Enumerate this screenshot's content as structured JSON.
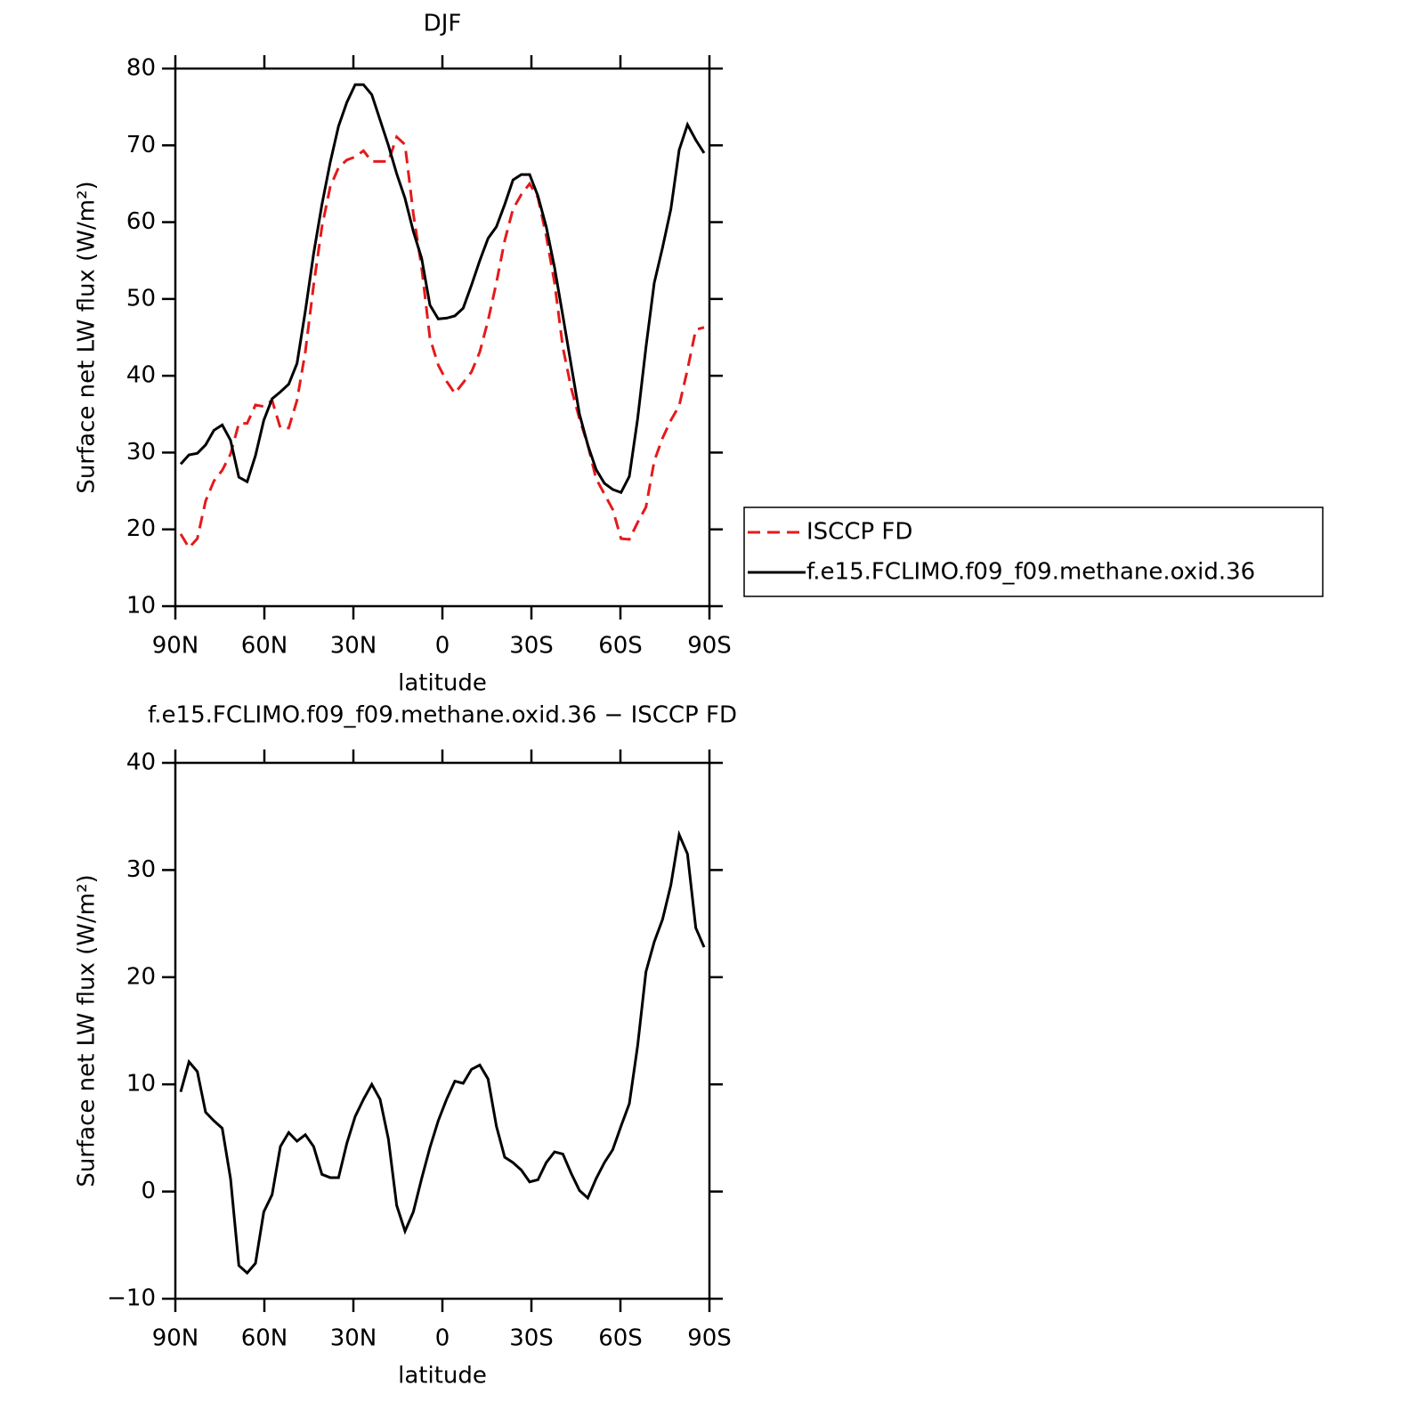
{
  "chart_data": [
    {
      "type": "line",
      "title": "DJF",
      "xlabel": "latitude",
      "ylabel": "Surface net LW flux (W/m²)",
      "x": [
        88.2,
        85.4,
        82.6,
        79.8,
        77,
        74.2,
        71.4,
        68.6,
        65.8,
        63,
        60.2,
        57.4,
        54.6,
        51.8,
        49,
        46.2,
        43.4,
        40.6,
        37.8,
        35,
        32.2,
        29.4,
        26.6,
        23.8,
        21,
        18.2,
        15.4,
        12.6,
        9.8,
        7,
        4.2,
        1.4,
        -1.4,
        -4.2,
        -7,
        -9.8,
        -12.6,
        -15.4,
        -18.2,
        -21,
        -23.8,
        -26.6,
        -29.4,
        -32.2,
        -35,
        -37.8,
        -40.6,
        -43.4,
        -46.2,
        -49,
        -51.8,
        -54.6,
        -57.4,
        -60.2,
        -63,
        -65.8,
        -68.6,
        -71.4,
        -74.2,
        -77,
        -79.8,
        -82.6,
        -85.4,
        -88.2
      ],
      "series": [
        {
          "name": "ISCCP FD",
          "color": "#e41a1c",
          "style": "dashed",
          "values": [
            19.4,
            17.6,
            18.8,
            23.7,
            26.3,
            27.7,
            29.8,
            33.8,
            33.8,
            36.2,
            36.0,
            36.8,
            33.2,
            33.2,
            36.8,
            43.1,
            51.8,
            59.4,
            64.6,
            67.1,
            68.1,
            68.5,
            69.3,
            67.9,
            67.9,
            67.9,
            71.1,
            70.1,
            61.1,
            54.1,
            44.9,
            41.4,
            39.3,
            37.7,
            39.1,
            40.5,
            43.1,
            47.2,
            52.1,
            57.6,
            61.7,
            63.6,
            65.0,
            63.2,
            58.2,
            52.1,
            43.7,
            38.4,
            34.4,
            31.0,
            26.6,
            24.6,
            22.6,
            18.8,
            18.7,
            20.9,
            22.9,
            28.9,
            31.9,
            34.2,
            36.1,
            40.8,
            46.0,
            46.3
          ]
        },
        {
          "name": "f.e15.FCLIMO.f09_f09.methane.oxid.36",
          "color": "#000000",
          "style": "solid",
          "values": [
            28.5,
            29.7,
            29.9,
            31.0,
            32.9,
            33.6,
            31.6,
            26.8,
            26.2,
            29.6,
            34.2,
            37.0,
            37.9,
            38.9,
            41.6,
            48.4,
            55.9,
            62.3,
            67.8,
            72.5,
            75.6,
            77.9,
            77.9,
            76.6,
            73.3,
            70.0,
            66.3,
            63.1,
            58.8,
            55.3,
            49.2,
            47.4,
            47.5,
            47.8,
            48.8,
            51.8,
            55.0,
            57.9,
            59.4,
            62.3,
            65.5,
            66.2,
            66.2,
            63.4,
            59.4,
            54.1,
            47.8,
            41.4,
            35.0,
            31.0,
            27.8,
            26.0,
            25.2,
            24.8,
            26.9,
            34.4,
            43.7,
            52.1,
            56.7,
            61.7,
            69.4,
            72.7,
            70.7,
            69.0
          ]
        }
      ],
      "xlim": [
        90,
        -90
      ],
      "xticks": [
        {
          "value": 90,
          "label": "90N"
        },
        {
          "value": 60,
          "label": "60N"
        },
        {
          "value": 30,
          "label": "30N"
        },
        0,
        {
          "value": -30,
          "label": "30S"
        },
        {
          "value": -60,
          "label": "60S"
        },
        {
          "value": -90,
          "label": "90S"
        }
      ],
      "ylim": [
        10,
        80
      ],
      "yticks": [
        10,
        20,
        30,
        40,
        50,
        60,
        70,
        80
      ],
      "grid": false,
      "legend": "right"
    },
    {
      "type": "line",
      "title": "f.e15.FCLIMO.f09_f09.methane.oxid.36 − ISCCP FD",
      "xlabel": "latitude",
      "ylabel": "Surface net LW flux (W/m²)",
      "x": [
        88.2,
        85.4,
        82.6,
        79.8,
        77,
        74.2,
        71.4,
        68.6,
        65.8,
        63,
        60.2,
        57.4,
        54.6,
        51.8,
        49,
        46.2,
        43.4,
        40.6,
        37.8,
        35,
        32.2,
        29.4,
        26.6,
        23.8,
        21,
        18.2,
        15.4,
        12.6,
        9.8,
        7,
        4.2,
        1.4,
        -1.4,
        -4.2,
        -7,
        -9.8,
        -12.6,
        -15.4,
        -18.2,
        -21,
        -23.8,
        -26.6,
        -29.4,
        -32.2,
        -35,
        -37.8,
        -40.6,
        -43.4,
        -46.2,
        -49,
        -51.8,
        -54.6,
        -57.4,
        -60.2,
        -63,
        -65.8,
        -68.6,
        -71.4,
        -74.2,
        -77,
        -79.8,
        -82.6,
        -85.4,
        -88.2
      ],
      "series": [
        {
          "color": "#000000",
          "style": "solid",
          "values": [
            9.3,
            12.1,
            11.2,
            7.4,
            6.6,
            5.9,
            1.2,
            -6.9,
            -7.6,
            -6.7,
            -1.9,
            -0.3,
            4.2,
            5.5,
            4.7,
            5.3,
            4.2,
            1.6,
            1.3,
            1.3,
            4.5,
            7.0,
            8.6,
            10.0,
            8.6,
            4.9,
            -1.3,
            -3.7,
            -1.9,
            1.2,
            4.1,
            6.6,
            8.6,
            10.3,
            10.1,
            11.4,
            11.8,
            10.5,
            6.1,
            3.2,
            2.7,
            2.0,
            0.9,
            1.1,
            2.7,
            3.7,
            3.5,
            1.7,
            0.1,
            -0.6,
            1.2,
            2.7,
            3.9,
            6.1,
            8.2,
            13.6,
            20.5,
            23.3,
            25.4,
            28.6,
            33.3,
            31.5,
            24.6,
            22.8
          ]
        }
      ],
      "xlim": [
        90,
        -90
      ],
      "xticks": [
        {
          "value": 90,
          "label": "90N"
        },
        {
          "value": 60,
          "label": "60N"
        },
        {
          "value": 30,
          "label": "30N"
        },
        0,
        {
          "value": -30,
          "label": "30S"
        },
        {
          "value": -60,
          "label": "60S"
        },
        {
          "value": -90,
          "label": "90S"
        }
      ],
      "ylim": [
        -10,
        40
      ],
      "yticks": [
        {
          "value": -10,
          "label": "−10"
        },
        0,
        10,
        20,
        30,
        40
      ],
      "grid": false
    }
  ]
}
